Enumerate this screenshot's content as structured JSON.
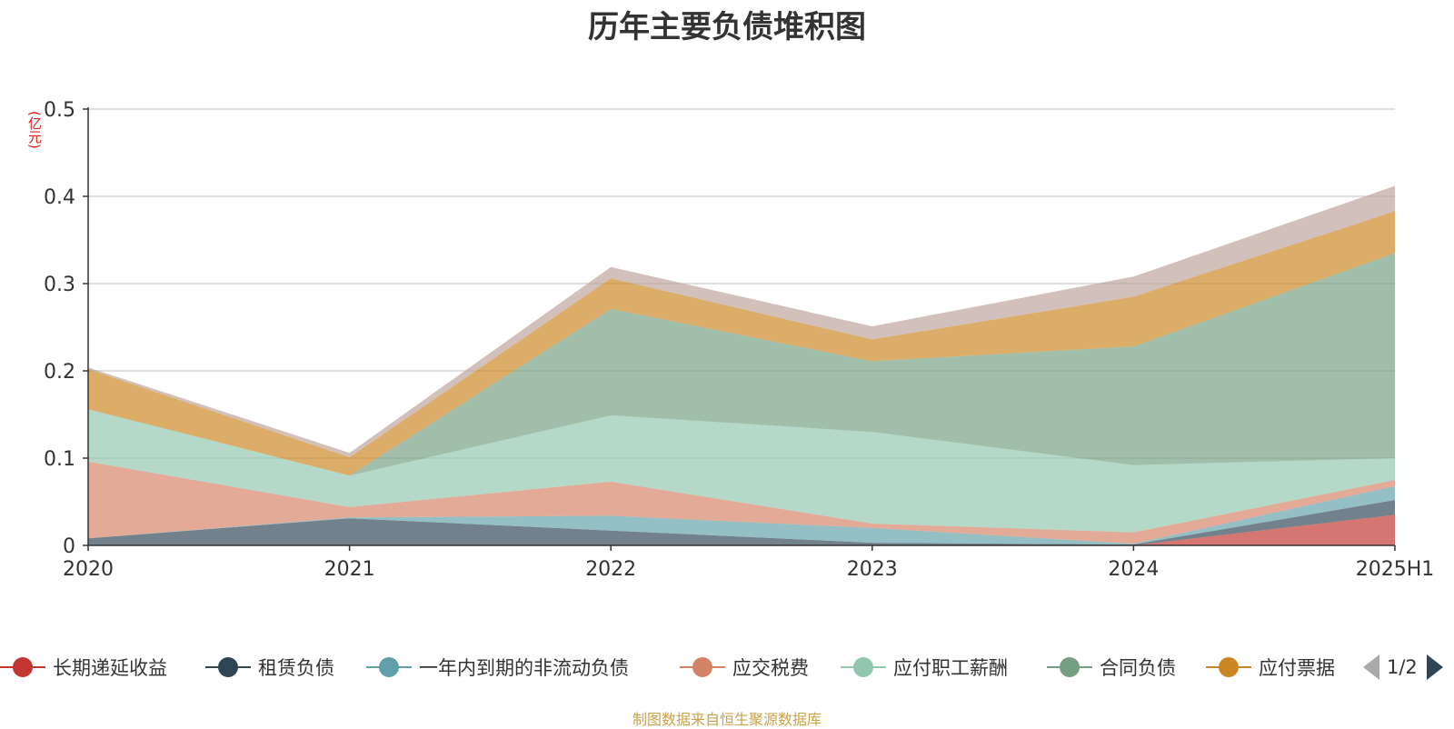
{
  "chart_data": {
    "type": "area",
    "stacked": true,
    "title": "历年主要负债堆积图",
    "unit_label": "(亿元)",
    "categories": [
      "2020",
      "2021",
      "2022",
      "2023",
      "2024",
      "2025H1"
    ],
    "ylim": [
      0,
      0.5
    ],
    "yticks": [
      "0",
      "0.1",
      "0.2",
      "0.3",
      "0.4",
      "0.5"
    ],
    "grid": true,
    "legend_position": "bottom",
    "series": [
      {
        "name": "长期递延收益",
        "color": "#c23531",
        "values": [
          0,
          0,
          0,
          0,
          0,
          0.035
        ]
      },
      {
        "name": "租赁负债",
        "color": "#2f4554",
        "values": [
          0.008,
          0.031,
          0.017,
          0.003,
          0.001,
          0.017
        ]
      },
      {
        "name": "一年内到期的非流动负债",
        "color": "#61a0a8",
        "values": [
          0,
          0.001,
          0.017,
          0.017,
          0.001,
          0.016
        ]
      },
      {
        "name": "应交税费",
        "color": "#d48265",
        "values": [
          0.088,
          0.012,
          0.039,
          0.005,
          0.013,
          0.007
        ]
      },
      {
        "name": "应付职工薪酬",
        "color": "#91c7ae",
        "values": [
          0.06,
          0.036,
          0.076,
          0.105,
          0.077,
          0.025
        ]
      },
      {
        "name": "合同负债",
        "color": "#749f83",
        "values": [
          0,
          0,
          0.122,
          0.081,
          0.136,
          0.235
        ]
      },
      {
        "name": "应付票据",
        "color": "#ca8622",
        "values": [
          0.046,
          0.021,
          0.035,
          0.025,
          0.057,
          0.048
        ]
      },
      {
        "name": "",
        "color": "#bda29a",
        "values": [
          0.002,
          0.005,
          0.013,
          0.015,
          0.023,
          0.029
        ]
      }
    ],
    "legend_page": "1/2",
    "source": "制图数据来自恒生聚源数据库"
  }
}
